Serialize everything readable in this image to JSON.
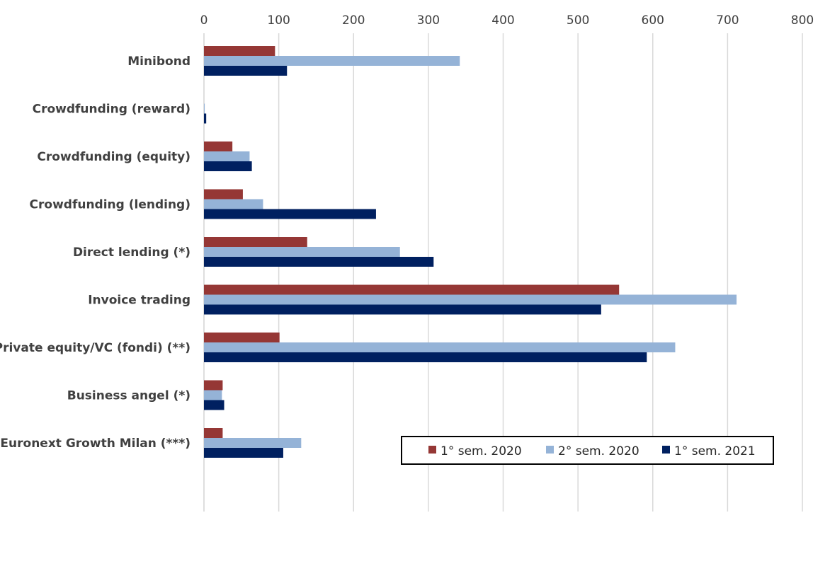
{
  "chart_data": {
    "type": "bar",
    "orientation": "horizontal",
    "title": "",
    "xlabel": "",
    "ylabel": "",
    "xlim": [
      0,
      800
    ],
    "x_ticks": [
      0,
      100,
      200,
      300,
      400,
      500,
      600,
      700,
      800
    ],
    "x_axis_position": "top",
    "grid": true,
    "legend_position": "bottom-right",
    "categories": [
      "Minibond",
      "Crowdfunding (reward)",
      "Crowdfunding (equity)",
      "Crowdfunding (lending)",
      "Direct lending (*)",
      "Invoice trading",
      "Private equity/VC (fondi) (**)",
      "Business angel (*)",
      "Euronext Growth Milan (***)"
    ],
    "series": [
      {
        "name": "1° sem. 2020",
        "color": "#953735",
        "values": [
          95,
          0,
          38,
          52,
          138,
          555,
          101,
          25,
          25
        ]
      },
      {
        "name": "2° sem. 2020",
        "color": "#95B3D7",
        "values": [
          342,
          1,
          61,
          79,
          262,
          712,
          630,
          24,
          130
        ]
      },
      {
        "name": "1° sem. 2021",
        "color": "#002060",
        "values": [
          111,
          3,
          64,
          230,
          307,
          531,
          592,
          27,
          106
        ]
      }
    ]
  }
}
